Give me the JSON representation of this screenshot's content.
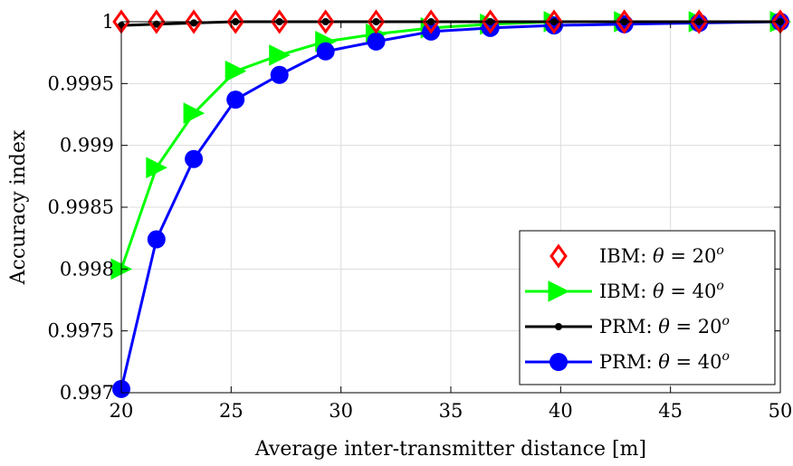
{
  "chart_data": {
    "type": "line",
    "title": "",
    "xlabel": "Average inter-transmitter distance [m]",
    "ylabel": "Accuracy index",
    "xlim": [
      20,
      50
    ],
    "ylim": [
      0.997,
      1.0
    ],
    "x_ticks": [
      "20",
      "25",
      "30",
      "35",
      "40",
      "45",
      "50"
    ],
    "y_ticks": [
      "0.997",
      "0.9975",
      "0.998",
      "0.9985",
      "0.999",
      "0.9995",
      "1"
    ],
    "grid": true,
    "legend_position": "bottom-right",
    "x": [
      20,
      21.6,
      23.3,
      25.2,
      27.2,
      29.3,
      31.6,
      34.1,
      36.8,
      39.7,
      42.9,
      46.3,
      50
    ],
    "series": [
      {
        "name": "IBM:  θ = 20°",
        "legend": {
          "prefix": "IBM:  ",
          "symbol": "θ",
          "eq": " = 20",
          "sup": "o"
        },
        "color": "#ff0000",
        "line": false,
        "marker": "diamond",
        "values": [
          1.0,
          1.0,
          1.0,
          1.0,
          1.0,
          1.0,
          1.0,
          1.0,
          1.0,
          1.0,
          1.0,
          1.0,
          1.0
        ]
      },
      {
        "name": "IBM:  θ = 40°",
        "legend": {
          "prefix": "IBM:  ",
          "symbol": "θ",
          "eq": " = 40",
          "sup": "o"
        },
        "color": "#00ff00",
        "line": true,
        "marker": "triangle-right",
        "values": [
          0.998,
          0.99882,
          0.99926,
          0.9996,
          0.99973,
          0.99984,
          0.9999,
          0.99995,
          0.99998,
          1.0,
          1.0,
          1.0,
          1.0
        ]
      },
      {
        "name": "PRM: θ = 20°",
        "legend": {
          "prefix": "PRM: ",
          "symbol": "θ",
          "eq": " = 20",
          "sup": "o"
        },
        "color": "#000000",
        "line": true,
        "marker": "dot",
        "values": [
          0.99997,
          0.99998,
          0.99999,
          1.0,
          1.0,
          1.0,
          1.0,
          1.0,
          1.0,
          1.0,
          1.0,
          1.0,
          1.0
        ]
      },
      {
        "name": "PRM: θ = 40°",
        "legend": {
          "prefix": "PRM: ",
          "symbol": "θ",
          "eq": " = 40",
          "sup": "o"
        },
        "color": "#0000ff",
        "line": true,
        "marker": "circle",
        "values": [
          0.99703,
          0.99824,
          0.99889,
          0.99937,
          0.99957,
          0.99976,
          0.99984,
          0.99992,
          0.99995,
          0.99997,
          0.99998,
          0.99999,
          1.0
        ]
      }
    ]
  }
}
